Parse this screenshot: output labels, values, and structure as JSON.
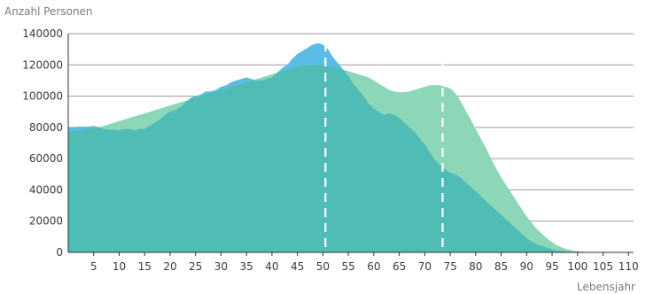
{
  "chart_data": {
    "type": "area",
    "ylabel": "Anzahl Personen",
    "xlabel": "Lebensjahr",
    "ylim": [
      0,
      140000
    ],
    "xlim": [
      0,
      111
    ],
    "y_ticks": [
      0,
      20000,
      40000,
      60000,
      80000,
      100000,
      120000,
      140000
    ],
    "y_tick_labels": [
      "0",
      "20000",
      "40000",
      "60000",
      "80000",
      "100000",
      "120000",
      "140000"
    ],
    "x_ticks": [
      5,
      10,
      15,
      20,
      25,
      30,
      35,
      40,
      45,
      50,
      55,
      60,
      65,
      70,
      75,
      80,
      85,
      90,
      95,
      100,
      105,
      110
    ],
    "x_tick_labels": [
      "5",
      "10",
      "15",
      "20",
      "25",
      "30",
      "35",
      "40",
      "45",
      "50",
      "55",
      "60",
      "65",
      "70",
      "75",
      "80",
      "85",
      "90",
      "95",
      "100",
      "105",
      "110"
    ],
    "grid": true,
    "legend": "none",
    "colors": {
      "series_a": "#5bbde4",
      "series_b": "#8bd7b8",
      "overlap": "#4fbcb6",
      "grid": "#9a9a9a",
      "axis": "#333333"
    },
    "series": [
      {
        "x": [
          0,
          1,
          2,
          3,
          4,
          5,
          6,
          7,
          8,
          9,
          10,
          11,
          12,
          13,
          14,
          15,
          16,
          17,
          18,
          19,
          20,
          21,
          22,
          23,
          24,
          25,
          26,
          27,
          28,
          29,
          30,
          31,
          32,
          33,
          34,
          35,
          36,
          37,
          38,
          39,
          40,
          41,
          42,
          43,
          44,
          45,
          46,
          47,
          48,
          49,
          50,
          51,
          52,
          53,
          54,
          55,
          56,
          57,
          58,
          59,
          60,
          61,
          62,
          63,
          64,
          65,
          66,
          67,
          68,
          69,
          70,
          71,
          72,
          73,
          74,
          75,
          76,
          77,
          78,
          79,
          80,
          81,
          82,
          83,
          84,
          85,
          86,
          87,
          88,
          89,
          90,
          91,
          92,
          93,
          94,
          95,
          96,
          97,
          98,
          99,
          100,
          101,
          102,
          103,
          104,
          105,
          106,
          107,
          108,
          109,
          110
        ],
        "values": [
          80000,
          80000,
          80500,
          80500,
          80500,
          81000,
          80000,
          79000,
          78500,
          78500,
          78000,
          79000,
          79000,
          78000,
          79000,
          79000,
          81000,
          83000,
          85000,
          88000,
          90000,
          91000,
          93000,
          96000,
          99000,
          100000,
          101000,
          103000,
          103000,
          104000,
          106000,
          107000,
          109000,
          110000,
          111000,
          112000,
          111000,
          110000,
          110000,
          111000,
          112000,
          115000,
          118000,
          120000,
          124000,
          127000,
          129000,
          131000,
          133000,
          134000,
          133000,
          130000,
          125000,
          121000,
          117000,
          113000,
          108000,
          104000,
          100000,
          95000,
          92000,
          90000,
          88000,
          89000,
          88000,
          86000,
          83000,
          80000,
          77000,
          73000,
          69000,
          64000,
          59000,
          56000,
          53000,
          51000,
          50000,
          48000,
          45000,
          42000,
          39000,
          36000,
          33000,
          30000,
          27000,
          24000,
          21000,
          18000,
          15000,
          12000,
          9000,
          7000,
          5000,
          4000,
          3000,
          2000,
          1200,
          800,
          500,
          300,
          150,
          80,
          40,
          20,
          10,
          5,
          0,
          0,
          0,
          0,
          0
        ]
      },
      {
        "x": [
          0,
          1,
          2,
          3,
          4,
          5,
          6,
          7,
          8,
          9,
          10,
          11,
          12,
          13,
          14,
          15,
          16,
          17,
          18,
          19,
          20,
          21,
          22,
          23,
          24,
          25,
          26,
          27,
          28,
          29,
          30,
          31,
          32,
          33,
          34,
          35,
          36,
          37,
          38,
          39,
          40,
          41,
          42,
          43,
          44,
          45,
          46,
          47,
          48,
          49,
          50,
          51,
          52,
          53,
          54,
          55,
          56,
          57,
          58,
          59,
          60,
          61,
          62,
          63,
          64,
          65,
          66,
          67,
          68,
          69,
          70,
          71,
          72,
          73,
          74,
          75,
          76,
          77,
          78,
          79,
          80,
          81,
          82,
          83,
          84,
          85,
          86,
          87,
          88,
          89,
          90,
          91,
          92,
          93,
          94,
          95,
          96,
          97,
          98,
          99,
          100,
          101,
          102,
          103,
          104,
          105,
          106,
          107,
          108,
          109,
          110
        ],
        "values": [
          77000,
          77500,
          78000,
          78500,
          79000,
          79500,
          80000,
          81000,
          82000,
          83000,
          84000,
          85000,
          86000,
          87000,
          88000,
          89000,
          90000,
          91000,
          92000,
          93000,
          94000,
          95000,
          96000,
          97000,
          98000,
          99000,
          100000,
          101000,
          102000,
          103000,
          104000,
          105000,
          106000,
          107000,
          108000,
          109000,
          110000,
          111000,
          112000,
          113000,
          114000,
          115000,
          116000,
          117000,
          118000,
          119000,
          119500,
          120000,
          120000,
          120000,
          120000,
          119500,
          119000,
          118000,
          117000,
          116000,
          115000,
          114000,
          113000,
          112000,
          110000,
          108000,
          106000,
          104000,
          103000,
          102500,
          102500,
          103000,
          104000,
          105000,
          106000,
          107000,
          107000,
          107000,
          106000,
          105000,
          102000,
          97000,
          91000,
          85000,
          79000,
          73000,
          67000,
          60000,
          54000,
          48000,
          43000,
          38000,
          33000,
          28000,
          23000,
          19000,
          15000,
          12000,
          9000,
          6500,
          4500,
          3000,
          2000,
          1300,
          800,
          500,
          300,
          150,
          80,
          40,
          20,
          10,
          5,
          0,
          0
        ]
      }
    ],
    "reference_lines": [
      {
        "x": 50.5
      },
      {
        "x": 73.5
      }
    ]
  }
}
